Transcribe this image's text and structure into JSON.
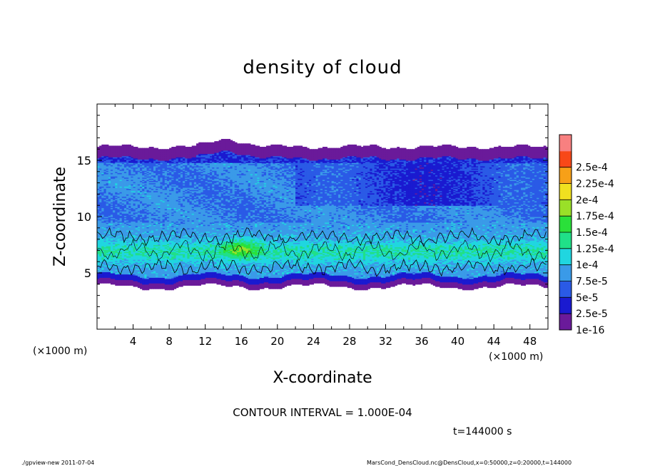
{
  "chart_data": {
    "type": "heatmap",
    "title": "density of cloud",
    "xlabel": "X-coordinate",
    "ylabel": "Z-coordinate",
    "x_unit": "(×1000 m)",
    "y_unit": "(×1000 m)",
    "xlim": [
      0,
      50
    ],
    "ylim": [
      0,
      20
    ],
    "x_ticks": [
      4,
      8,
      12,
      16,
      20,
      24,
      28,
      32,
      36,
      40,
      44,
      48
    ],
    "y_ticks": [
      5,
      10,
      15
    ],
    "colorbar": {
      "labels": [
        "1e-16",
        "2.5e-5",
        "5e-5",
        "7.5e-5",
        "1e-4",
        "1.25e-4",
        "1.5e-4",
        "1.75e-4",
        "2e-4",
        "2.25e-4",
        "2.5e-4"
      ],
      "colors": [
        "#6a1a9a",
        "#1a1ad0",
        "#2a5ae6",
        "#3a9ae8",
        "#20d6e0",
        "#20e088",
        "#2ae03a",
        "#9ae028",
        "#f0e020",
        "#f7a018",
        "#f84818",
        "#f88080"
      ]
    },
    "contour_interval_text": "CONTOUR INTERVAL = 1.000E-04",
    "time_text": "t=144000 s",
    "footer_left": "./gpview-new  2011-07-04",
    "footer_right": "MarsCond_DensCloud.nc@DensCloud,x=0:50000,z=0:20000,t=144000"
  }
}
